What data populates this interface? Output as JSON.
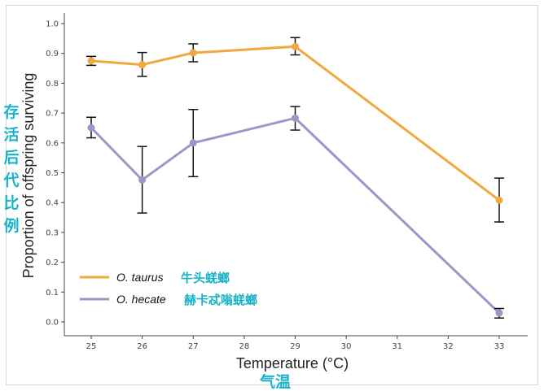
{
  "chart_data": {
    "type": "line",
    "xlabel": "Temperature (°C)",
    "ylabel": "Proportion of offspring surviving",
    "xlim": [
      24.5,
      33.5
    ],
    "ylim": [
      -0.03,
      1.0
    ],
    "x_ticks": [
      25,
      26,
      27,
      28,
      29,
      30,
      31,
      32,
      33
    ],
    "y_ticks": [
      0.0,
      0.1,
      0.2,
      0.3,
      0.4,
      0.5,
      0.6,
      0.7,
      0.8,
      0.9,
      1.0
    ],
    "grid": false,
    "legend_position": "bottom-left",
    "series": [
      {
        "name": "O. taurus",
        "annotation": "牛头蜣螂",
        "color": "#f0a840",
        "x": [
          25,
          26,
          27,
          29,
          33
        ],
        "y": [
          0.875,
          0.862,
          0.902,
          0.923,
          0.408
        ],
        "err_low": [
          0.86,
          0.823,
          0.872,
          0.895,
          0.335
        ],
        "err_high": [
          0.89,
          0.903,
          0.932,
          0.953,
          0.482
        ]
      },
      {
        "name": "O. hecate",
        "annotation": "赫卡忒嗡蜣螂",
        "color": "#9b97c6",
        "x": [
          25,
          26,
          27,
          29,
          33
        ],
        "y": [
          0.651,
          0.476,
          0.6,
          0.683,
          0.03
        ],
        "err_low": [
          0.617,
          0.365,
          0.487,
          0.643,
          0.013
        ],
        "err_high": [
          0.686,
          0.588,
          0.712,
          0.722,
          0.045
        ]
      }
    ],
    "annotations": {
      "ylabel_cn": "存活后代比例",
      "xlabel_cn": "气温"
    }
  },
  "colors": {
    "axis": "#444444",
    "error_bar": "#111111",
    "annotation": "#19b3c9"
  }
}
